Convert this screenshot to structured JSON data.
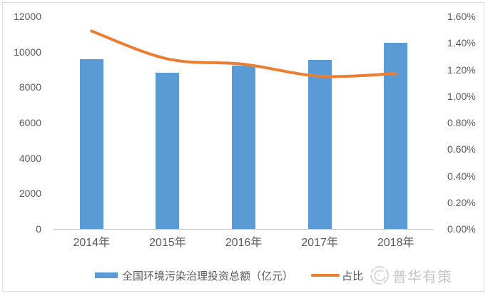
{
  "chart_data": {
    "type": "combo_bar_line",
    "categories": [
      "2014年",
      "2015年",
      "2016年",
      "2017年",
      "2018年"
    ],
    "series": [
      {
        "name": "全国环境污染治理投资总额（亿元）",
        "type": "bar",
        "yaxis": "left",
        "color": "#5B9BD5",
        "values": [
          9575.5,
          8806.3,
          9219.8,
          9539.0,
          10522.9
        ]
      },
      {
        "name": "占比",
        "type": "line",
        "yaxis": "right",
        "color": "#ED7D31",
        "values": [
          1.49,
          1.28,
          1.24,
          1.15,
          1.17
        ]
      }
    ],
    "left_axis": {
      "min": 0,
      "max": 12000,
      "step": 2000,
      "tick_labels": [
        "12000",
        "10000",
        "8000",
        "6000",
        "4000",
        "2000",
        "0"
      ]
    },
    "right_axis": {
      "min": 0,
      "max": 1.6,
      "step": 0.2,
      "tick_labels": [
        "1.60%",
        "1.40%",
        "1.20%",
        "1.00%",
        "0.80%",
        "0.60%",
        "0.40%",
        "0.20%",
        "0.00%"
      ]
    },
    "legend_position": "bottom",
    "grid": false
  },
  "watermark": {
    "label": "普华有策",
    "icon": "puhua-logo-icon"
  },
  "colors": {
    "bar": "#5B9BD5",
    "line": "#ED7D31",
    "axis_text": "#595959",
    "axis_line": "#C9C9C9",
    "frame_border": "#DCDCDC",
    "watermark": "#C6C6C6",
    "background": "#FFFFFF"
  }
}
